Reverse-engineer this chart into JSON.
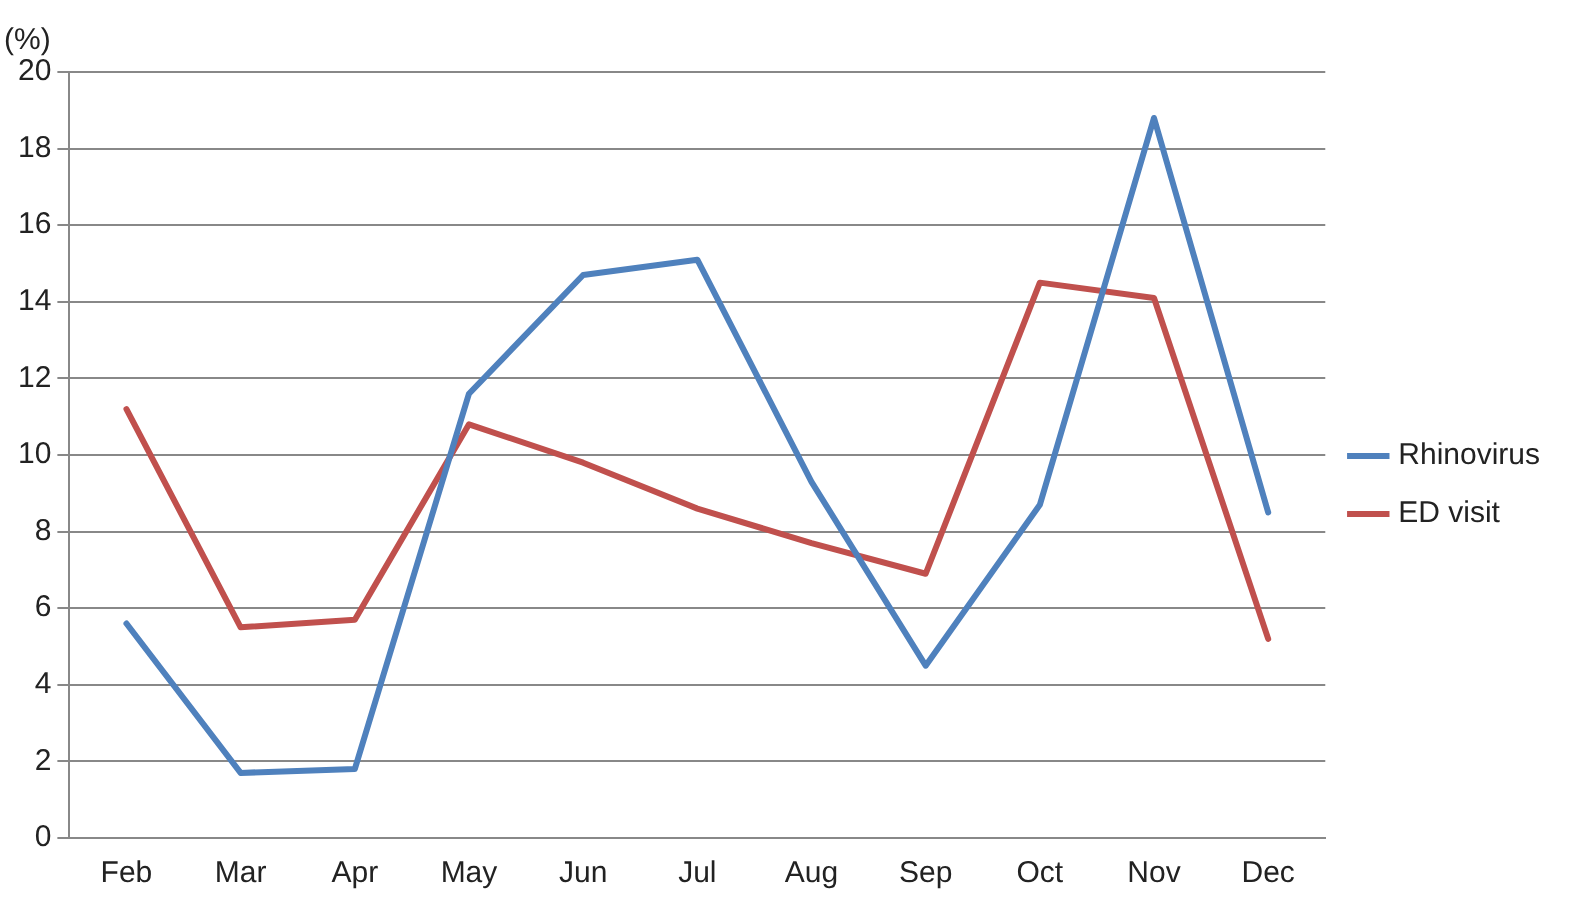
{
  "chart_data": {
    "type": "line",
    "ylabel": "(%)",
    "categories": [
      "Feb",
      "Mar",
      "Apr",
      "May",
      "Jun",
      "Jul",
      "Aug",
      "Sep",
      "Oct",
      "Nov",
      "Dec"
    ],
    "series": [
      {
        "name": "Rhinovirus",
        "color": "#4f81bd",
        "values": [
          5.6,
          1.7,
          1.8,
          11.6,
          14.7,
          15.1,
          9.3,
          4.5,
          8.7,
          18.8,
          8.5
        ]
      },
      {
        "name": "ED visit",
        "color": "#c0504d",
        "values": [
          11.2,
          5.5,
          5.7,
          10.8,
          9.8,
          8.6,
          7.7,
          6.9,
          14.5,
          14.1,
          5.2
        ]
      }
    ],
    "ylim": [
      0,
      20
    ],
    "yticks": [
      0,
      2,
      4,
      6,
      8,
      10,
      12,
      14,
      16,
      18,
      20
    ],
    "grid": "y",
    "legend": "right",
    "marker": "none",
    "line_style": "solid"
  }
}
